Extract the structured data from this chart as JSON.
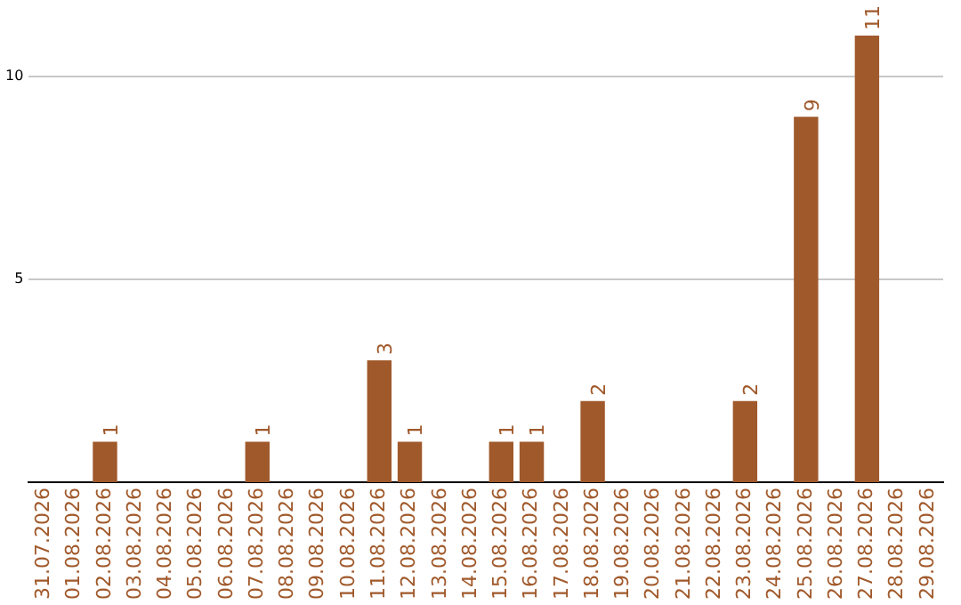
{
  "chart_data": {
    "type": "bar",
    "categories": [
      "31.07.2026",
      "01.08.2026",
      "02.08.2026",
      "03.08.2026",
      "04.08.2026",
      "05.08.2026",
      "06.08.2026",
      "07.08.2026",
      "08.08.2026",
      "09.08.2026",
      "10.08.2026",
      "11.08.2026",
      "12.08.2026",
      "13.08.2026",
      "14.08.2026",
      "15.08.2026",
      "16.08.2026",
      "17.08.2026",
      "18.08.2026",
      "19.08.2026",
      "20.08.2026",
      "21.08.2026",
      "22.08.2026",
      "23.08.2026",
      "24.08.2026",
      "25.08.2026",
      "26.08.2026",
      "27.08.2026",
      "28.08.2026",
      "29.08.2026"
    ],
    "values": [
      0,
      0,
      1,
      0,
      0,
      0,
      0,
      1,
      0,
      0,
      0,
      3,
      1,
      0,
      0,
      1,
      1,
      0,
      2,
      0,
      0,
      0,
      0,
      2,
      0,
      9,
      0,
      11,
      0,
      0
    ],
    "value_labels": [
      null,
      null,
      "1",
      null,
      null,
      null,
      null,
      "1",
      null,
      null,
      null,
      "3",
      "1",
      null,
      null,
      "1",
      "1",
      null,
      "2",
      null,
      null,
      null,
      null,
      "2",
      null,
      "9",
      null,
      "11",
      null,
      null
    ],
    "color": "#a0592b",
    "ylim": [
      0,
      11
    ],
    "yticks": [
      5,
      10
    ],
    "grid": "y",
    "legend": false
  }
}
